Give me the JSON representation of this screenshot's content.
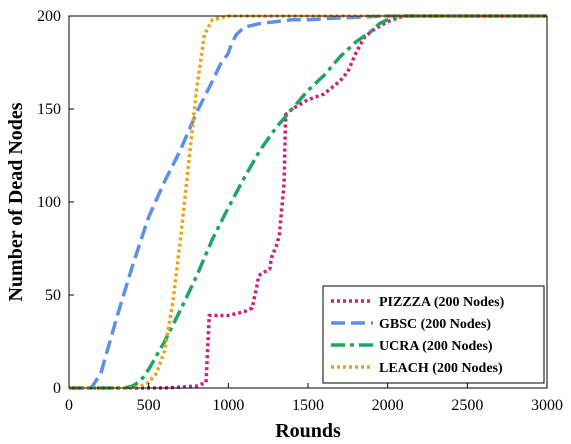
{
  "chart_data": {
    "type": "line",
    "title": "",
    "xlabel": "Rounds",
    "ylabel": "Number of Dead Nodes",
    "xlim": [
      0,
      3000
    ],
    "ylim": [
      0,
      200
    ],
    "xticks": [
      "0",
      "500",
      "1000",
      "1500",
      "2000",
      "2500",
      "3000"
    ],
    "yticks": [
      "0",
      "50",
      "100",
      "150",
      "200"
    ],
    "grid": false,
    "legend_position": "bottom-right",
    "series": [
      {
        "name": "PIZZZA (200 Nodes)",
        "color": "#cc1f7a",
        "dash": "dotted",
        "x": [
          0,
          400,
          600,
          800,
          860,
          870,
          880,
          900,
          1000,
          1100,
          1150,
          1180,
          1190,
          1200,
          1260,
          1270,
          1300,
          1320,
          1350,
          1355,
          1360,
          1400,
          1500,
          1600,
          1700,
          1750,
          1800,
          1850,
          1900,
          2000,
          2100,
          2500,
          3000
        ],
        "y": [
          0,
          0,
          0,
          1,
          3,
          20,
          39,
          39,
          39,
          41,
          43,
          55,
          60,
          61,
          64,
          70,
          76,
          82,
          110,
          130,
          147,
          150,
          155,
          158,
          165,
          170,
          180,
          188,
          192,
          197,
          200,
          200,
          200
        ]
      },
      {
        "name": "GBSC (200 Nodes)",
        "color": "#5b8fe8",
        "dash": "dashed",
        "x": [
          0,
          140,
          200,
          300,
          400,
          500,
          600,
          700,
          800,
          900,
          950,
          1000,
          1020,
          1050,
          1100,
          1200,
          1300,
          1400,
          1500,
          1700,
          2000,
          2500,
          3000
        ],
        "y": [
          0,
          0,
          8,
          38,
          66,
          92,
          111,
          128,
          148,
          165,
          174,
          180,
          185,
          190,
          194,
          196,
          197,
          198,
          198,
          199,
          200,
          200,
          200
        ]
      },
      {
        "name": "UCRA (200 Nodes)",
        "color": "#1ea562",
        "dash": "dashdot",
        "x": [
          0,
          350,
          400,
          450,
          500,
          600,
          700,
          800,
          900,
          1000,
          1100,
          1200,
          1300,
          1400,
          1500,
          1600,
          1700,
          1800,
          1900,
          1950,
          2000,
          2100,
          2500,
          3000
        ],
        "y": [
          0,
          0,
          1,
          4,
          10,
          25,
          42,
          60,
          80,
          97,
          113,
          128,
          140,
          150,
          160,
          168,
          178,
          186,
          192,
          196,
          198,
          200,
          200,
          200
        ]
      },
      {
        "name": "LEACH (200 Nodes)",
        "color": "#e8a317",
        "dash": "dotted",
        "x": [
          0,
          400,
          450,
          500,
          550,
          600,
          650,
          700,
          750,
          800,
          850,
          900,
          950,
          1000,
          1100,
          1500,
          2000,
          3000
        ],
        "y": [
          0,
          0,
          1,
          3,
          8,
          20,
          45,
          80,
          120,
          160,
          190,
          198,
          199,
          200,
          200,
          200,
          200,
          200
        ]
      }
    ]
  }
}
